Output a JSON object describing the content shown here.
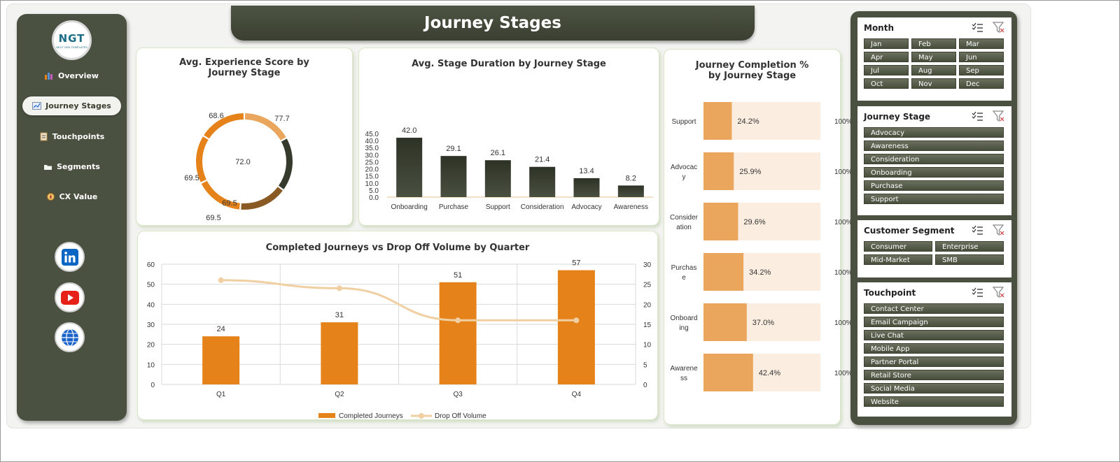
{
  "logo": {
    "main": "NGT",
    "sub": "NEXT GEN TEMPLATES"
  },
  "header": {
    "title": "Journey Stages"
  },
  "sidebar": {
    "items": [
      {
        "label": "Overview",
        "icon": "bar-chart-icon"
      },
      {
        "label": "Journey Stages",
        "icon": "line-chart-icon",
        "active": true
      },
      {
        "label": "Touchpoints",
        "icon": "clipboard-icon"
      },
      {
        "label": "Segments",
        "icon": "folder-icon"
      },
      {
        "label": "CX Value",
        "icon": "compass-icon"
      }
    ],
    "social": [
      {
        "label": "in",
        "icon": "linkedin-icon"
      },
      {
        "label": "youtube",
        "icon": "youtube-icon"
      },
      {
        "label": "web",
        "icon": "globe-icon"
      }
    ]
  },
  "colors": {
    "sidebar_bg": "#4b5140",
    "orange": "#e5821a",
    "light_orange": "#e9a65c",
    "peach_bg": "#fbeee0",
    "dark_bar": "#353a2d",
    "line_color": "#f0cfa3"
  },
  "charts": {
    "donut": {
      "title": "Avg. Experience Score by Journey Stage",
      "center_label": "72.0",
      "chart_data": {
        "type": "pie",
        "values": [
          72.0,
          77.7,
          69.5,
          69.5,
          69.5,
          68.6
        ],
        "labels": [
          "72.0",
          "77.7",
          "69.5",
          "69.5",
          "69.5",
          "68.6"
        ],
        "colors": [
          "#e9a65c",
          "#353a2d",
          "#8a5a25",
          "#e5821a",
          "#e5821a",
          "#e5821a"
        ]
      }
    },
    "duration": {
      "title": "Avg. Stage Duration by Journey Stage",
      "chart_data": {
        "type": "bar",
        "categories": [
          "Onboarding",
          "Purchase",
          "Support",
          "Consideration",
          "Advocacy",
          "Awareness"
        ],
        "values": [
          42.0,
          29.1,
          26.1,
          21.4,
          13.4,
          8.2
        ],
        "value_labels": [
          "42.0",
          "29.1",
          "26.1",
          "21.4",
          "13.4",
          "8.2"
        ],
        "ylim": [
          0,
          45
        ],
        "yticks": [
          "0.0",
          "5.0",
          "10.0",
          "15.0",
          "20.0",
          "25.0",
          "30.0",
          "35.0",
          "40.0",
          "45.0"
        ]
      }
    },
    "completion": {
      "title": "Journey Completion % by Journey Stage",
      "chart_data": {
        "type": "bar",
        "orientation": "horizontal",
        "categories": [
          "Support",
          "Advocacy",
          "Consideration",
          "Purchase",
          "Onboarding",
          "Awareness"
        ],
        "category_lines": [
          [
            "Support"
          ],
          [
            "Advocac",
            "y"
          ],
          [
            "Consider",
            "ation"
          ],
          [
            "Purchas",
            "e"
          ],
          [
            "Onboard",
            "ing"
          ],
          [
            "Awarene",
            "ss"
          ]
        ],
        "values": [
          24.2,
          25.9,
          29.6,
          34.2,
          37.0,
          42.4
        ],
        "value_labels": [
          "24.2%",
          "25.9%",
          "29.6%",
          "34.2%",
          "37.0%",
          "42.4%"
        ],
        "total_label": "100%"
      }
    },
    "quarter": {
      "title": "Completed Journeys vs Drop Off Volume by Quarter",
      "chart_data": {
        "type": "bar",
        "categories": [
          "Q1",
          "Q2",
          "Q3",
          "Q4"
        ],
        "series": [
          {
            "name": "Completed Journeys",
            "type": "bar",
            "values": [
              24,
              31,
              51,
              57
            ],
            "labels": [
              "24",
              "31",
              "51",
              "57"
            ]
          },
          {
            "name": "Drop Off Volume",
            "type": "line",
            "axis": "secondary",
            "values": [
              26,
              24,
              16,
              16
            ]
          }
        ],
        "ylim": [
          0,
          60
        ],
        "yticks": [
          "0",
          "10",
          "20",
          "30",
          "40",
          "50",
          "60"
        ],
        "y2lim": [
          0,
          30
        ],
        "y2ticks": [
          "0",
          "5",
          "10",
          "15",
          "20",
          "25",
          "30"
        ],
        "grid": true,
        "legend": "bottom"
      }
    }
  },
  "slicers": [
    {
      "title": "Month",
      "items": [
        "Jan",
        "Feb",
        "Mar",
        "Apr",
        "May",
        "Jun",
        "Jul",
        "Aug",
        "Sep",
        "Oct",
        "Nov",
        "Dec"
      ],
      "columns": 3
    },
    {
      "title": "Journey Stage",
      "items": [
        "Advocacy",
        "Awareness",
        "Consideration",
        "Onboarding",
        "Purchase",
        "Support"
      ],
      "columns": 1
    },
    {
      "title": "Customer Segment",
      "items": [
        "Consumer",
        "Enterprise",
        "Mid-Market",
        "SMB"
      ],
      "columns": 2
    },
    {
      "title": "Touchpoint",
      "items": [
        "Contact Center",
        "Email Campaign",
        "Live Chat",
        "Mobile App",
        "Partner Portal",
        "Retail Store",
        "Social Media",
        "Website"
      ],
      "columns": 1
    }
  ]
}
